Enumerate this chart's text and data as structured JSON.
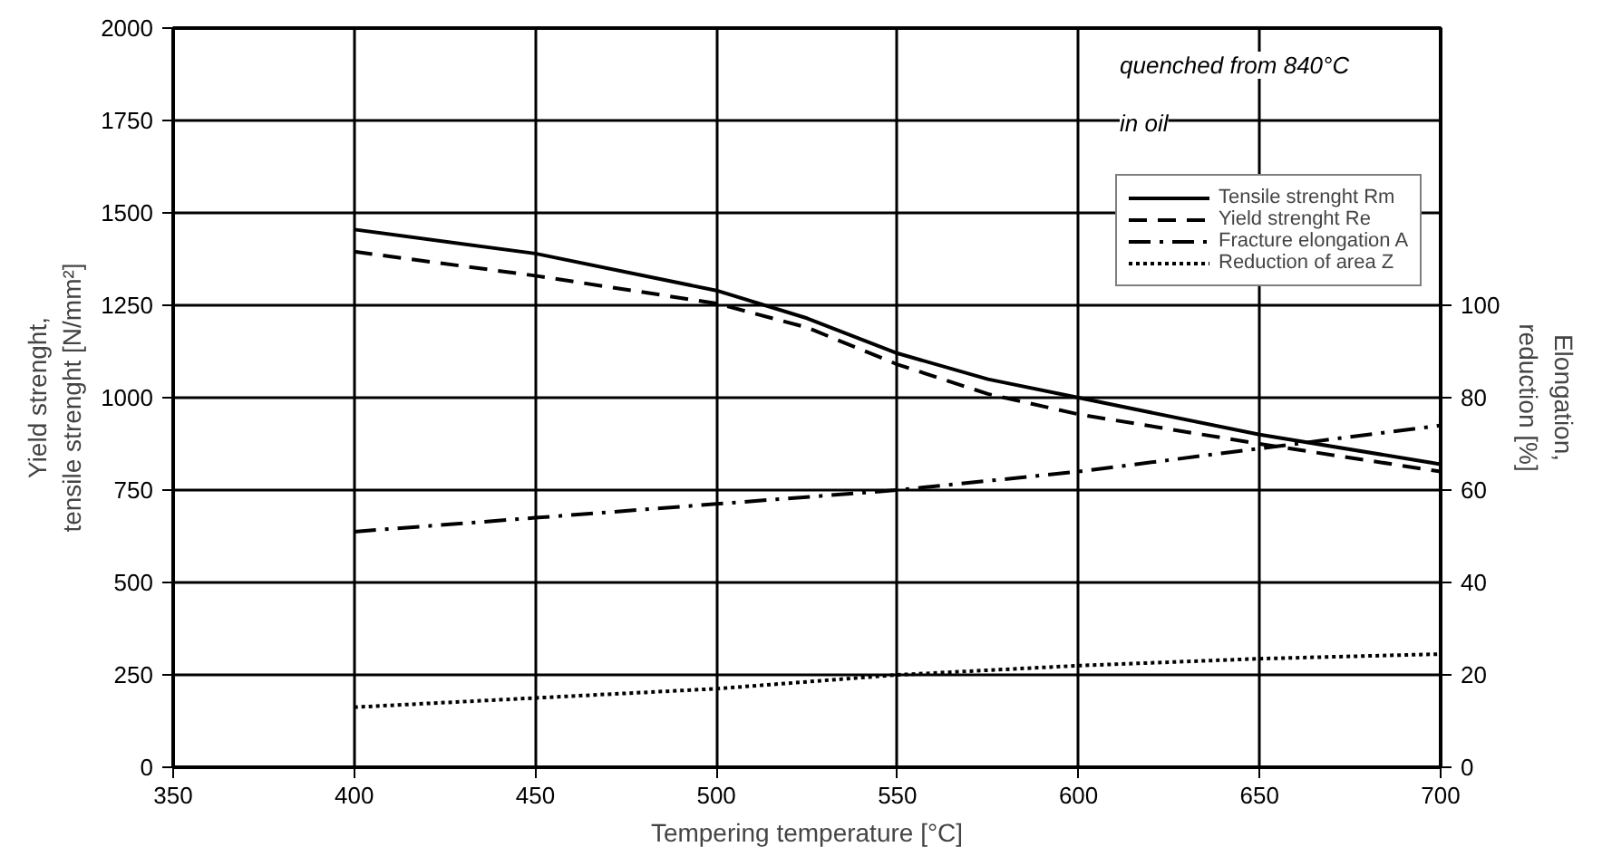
{
  "chart_data": {
    "type": "line",
    "xlabel": "Tempering temperature [°C]",
    "ylabel": "Yield strenght,\ntensile strenght [N/mm²]",
    "y2label": "Elongation,\nreduction [%]",
    "annotations": [
      "quenched from 840°C",
      "in oil"
    ],
    "x": [
      400,
      450,
      500,
      525,
      550,
      575,
      600,
      650,
      700
    ],
    "series": [
      {
        "name": "Tensile strenght Rm",
        "color": "#000000",
        "line_style": "solid",
        "values": [
          1455,
          1390,
          1290,
          1215,
          1120,
          1050,
          1000,
          900,
          820
        ]
      },
      {
        "name": "Yield strenght Re",
        "color": "#000000",
        "line_style": "dashed",
        "values": [
          1395,
          1330,
          1255,
          1190,
          1090,
          1010,
          955,
          875,
          800
        ]
      },
      {
        "name": "Fracture elongation A",
        "color": "#000000",
        "line_style": "dashdot",
        "axis": "y2",
        "x": [
          400,
          450,
          500,
          550,
          600,
          650,
          700
        ],
        "values": [
          51,
          54,
          57,
          60,
          64,
          69,
          74
        ]
      },
      {
        "name": "Reduction of area Z",
        "color": "#000000",
        "line_style": "dotted",
        "axis": "y2",
        "x": [
          400,
          450,
          500,
          550,
          600,
          650,
          700
        ],
        "values": [
          13,
          15,
          17,
          20,
          22,
          23.5,
          24.5
        ]
      }
    ],
    "xlim": [
      350,
      700
    ],
    "xticks": [
      350,
      400,
      450,
      500,
      550,
      600,
      650,
      700
    ],
    "ylim": [
      0,
      2000
    ],
    "yticks": [
      0,
      250,
      500,
      750,
      1000,
      1250,
      1500,
      1750,
      2000
    ],
    "y2lim": [
      0,
      160
    ],
    "y2ticks": [
      0,
      20,
      40,
      60,
      80,
      100
    ],
    "grid": true,
    "legend": "top right"
  }
}
